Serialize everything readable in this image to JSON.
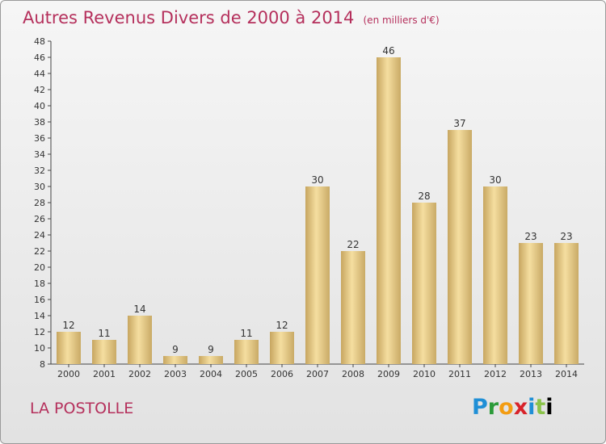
{
  "title": "Autres Revenus Divers de 2000 à 2014",
  "unit_note": "(en milliers d'€)",
  "commune": "LA POSTOLLE",
  "logo_text": "Proxiti",
  "colors": {
    "title": "#b5305c",
    "bar_light": "#f5dea0",
    "bar_dark": "#c7a660"
  },
  "chart_data": {
    "type": "bar",
    "categories": [
      "2000",
      "2001",
      "2002",
      "2003",
      "2004",
      "2005",
      "2006",
      "2007",
      "2008",
      "2009",
      "2010",
      "2011",
      "2012",
      "2013",
      "2014"
    ],
    "values": [
      12,
      11,
      14,
      9,
      9,
      11,
      12,
      30,
      22,
      46,
      28,
      37,
      30,
      23,
      23
    ],
    "ylim": [
      8,
      48
    ],
    "yticks": [
      8,
      10,
      12,
      14,
      16,
      18,
      20,
      22,
      24,
      26,
      28,
      30,
      32,
      34,
      36,
      38,
      40,
      42,
      44,
      46,
      48
    ],
    "grid": false,
    "legend": "none"
  }
}
